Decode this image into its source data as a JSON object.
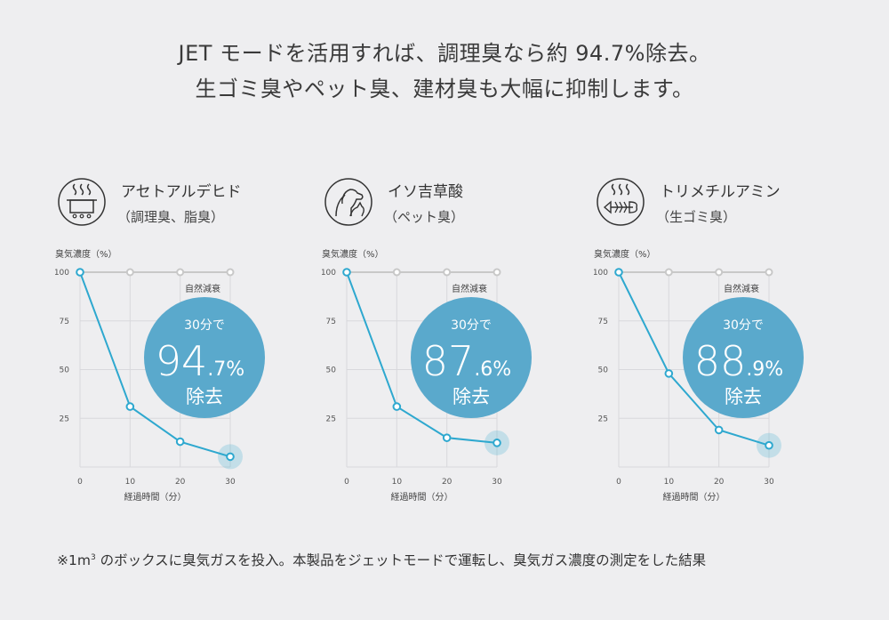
{
  "headline": {
    "line1": "JET モードを活用すれば、調理臭なら約 94.7%除去。",
    "line2": "生ゴミ臭やペット臭、建材臭も大幅に抑制します。"
  },
  "footnote": {
    "prefix": "※1m",
    "superscript": "3",
    "text": " のボックスに臭気ガスを投入。本製品をジェットモードで運転し、臭気ガス濃度の測定をした結果"
  },
  "colors": {
    "accent": "#2ea8cf",
    "bubble": "#5aa9cc",
    "natural_decay": "#c8c8c8",
    "grid": "#d8d8dc",
    "background": "#eeeef0"
  },
  "panels": [
    {
      "icon": "cooking-pot-icon",
      "name": "アセトアルデヒド",
      "sub": "（調理臭、脂臭）",
      "bubble": {
        "top": "30分で",
        "big": "94",
        "small": ".7%",
        "bottom": "除去"
      }
    },
    {
      "icon": "dog-cat-icon",
      "name": "イソ吉草酸",
      "sub": "（ペット臭）",
      "bubble": {
        "top": "30分で",
        "big": "87",
        "small": ".6%",
        "bottom": "除去"
      }
    },
    {
      "icon": "fish-bone-icon",
      "name": "トリメチルアミン",
      "sub": "（生ゴミ臭）",
      "bubble": {
        "top": "30分で",
        "big": "88",
        "small": ".9%",
        "bottom": "除去"
      }
    }
  ],
  "chart_data": [
    {
      "type": "line",
      "ylabel": "臭気濃度（%）",
      "xlabel": "経過時間（分）",
      "x": [
        0,
        10,
        20,
        30
      ],
      "xticks": [
        "0",
        "10",
        "20",
        "30"
      ],
      "yticks": [
        "100",
        "75",
        "50",
        "25"
      ],
      "xlim": [
        0,
        30
      ],
      "ylim": [
        0,
        100
      ],
      "series": [
        {
          "name": "自然減衰",
          "values": [
            100,
            100,
            100,
            100
          ]
        },
        {
          "values": [
            100,
            31,
            13,
            5.3
          ]
        }
      ]
    },
    {
      "type": "line",
      "ylabel": "臭気濃度（%）",
      "xlabel": "経過時間（分）",
      "x": [
        0,
        10,
        20,
        30
      ],
      "xticks": [
        "0",
        "10",
        "20",
        "30"
      ],
      "yticks": [
        "100",
        "75",
        "50",
        "25"
      ],
      "xlim": [
        0,
        30
      ],
      "ylim": [
        0,
        100
      ],
      "series": [
        {
          "name": "自然減衰",
          "values": [
            100,
            100,
            100,
            100
          ]
        },
        {
          "values": [
            100,
            31,
            15,
            12.4
          ]
        }
      ]
    },
    {
      "type": "line",
      "ylabel": "臭気濃度（%）",
      "xlabel": "経過時間（分）",
      "x": [
        0,
        10,
        20,
        30
      ],
      "xticks": [
        "0",
        "10",
        "20",
        "30"
      ],
      "yticks": [
        "100",
        "75",
        "50",
        "25"
      ],
      "xlim": [
        0,
        30
      ],
      "ylim": [
        0,
        100
      ],
      "series": [
        {
          "name": "自然減衰",
          "values": [
            100,
            100,
            100,
            100
          ]
        },
        {
          "values": [
            100,
            48,
            19,
            11.1
          ]
        }
      ]
    }
  ]
}
